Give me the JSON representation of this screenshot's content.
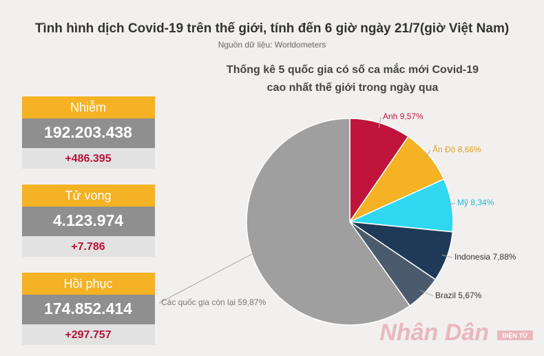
{
  "header": {
    "title": "Tình hình dịch Covid-19 trên thế giới, tính đến 6 giờ ngày 21/7(giờ Việt Nam)",
    "source": "Nguồn dữ liệu: Worldometers"
  },
  "stats": [
    {
      "label": "Nhiễm",
      "total": "192.203.438",
      "change": "+486.395"
    },
    {
      "label": "Tử vong",
      "total": "4.123.974",
      "change": "+7.786"
    },
    {
      "label": "Hồi phục",
      "total": "174.852.414",
      "change": "+297.757"
    }
  ],
  "logo": {
    "name": "Nhân Dân",
    "sub": "ĐIỆN TỬ"
  },
  "chart_data": {
    "type": "pie",
    "title": [
      "Thống kê 5 quốc gia có số ca mắc  mới Covid-19",
      "cao nhất thế giới trong ngày qua"
    ],
    "categories": [
      "Anh",
      "Ấn Độ",
      "Mỹ",
      "Indonesia",
      "Brazil",
      "Các quốc gia còn lại"
    ],
    "values": [
      9.57,
      8.66,
      8.34,
      7.88,
      5.67,
      59.87
    ],
    "value_labels": [
      "9,57%",
      "8,66%",
      "8,34%",
      "7,88%",
      "5,67%",
      "59,87%"
    ],
    "colors": [
      "#c0143c",
      "#f4b224",
      "#2fd8f0",
      "#1f3a58",
      "#4c5a6e",
      "#9f9f9f"
    ]
  }
}
